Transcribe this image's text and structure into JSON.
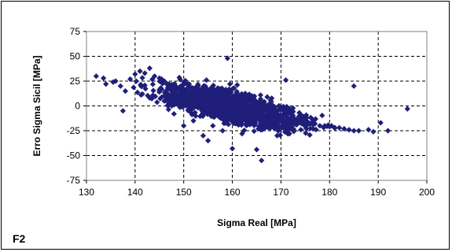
{
  "panel_label": "F2",
  "chart_data": {
    "type": "scatter",
    "xlabel": "Sigma Real [MPa]",
    "ylabel": "Erro Sigma Sicil [MPa]",
    "xlim": [
      130,
      200
    ],
    "ylim": [
      -75,
      75
    ],
    "x_ticks": [
      130,
      140,
      150,
      160,
      170,
      180,
      190,
      200
    ],
    "y_ticks": [
      75,
      50,
      25,
      0,
      -25,
      -50,
      -75
    ],
    "grid": "dashed, both axes",
    "legend": "none",
    "marker": "diamond",
    "marker_color": "#1F1F7A",
    "x": [
      132.0,
      133.5,
      134.0,
      135.5,
      136.0,
      137.0,
      138.0,
      139.0,
      140.0,
      141.0,
      141.5,
      142.0,
      143.0,
      144.0,
      145.0,
      146.0,
      147.0,
      148.0,
      149.0,
      150.0,
      151.0,
      152.0,
      153.0,
      154.0,
      155.0,
      156.0,
      157.0,
      158.0,
      159.0,
      160.0,
      161.0,
      162.0,
      163.0,
      164.0,
      165.0,
      166.0,
      167.0,
      168.0,
      169.0,
      170.0,
      171.0,
      172.0,
      173.0,
      174.0,
      175.0,
      176.0,
      177.0,
      178.0,
      179.0,
      180.0,
      181.0,
      182.0,
      183.0,
      184.0,
      185.0,
      186.0,
      188.0,
      189.0,
      190.5,
      192.0,
      196.0,
      159.0,
      137.5,
      185.0,
      171.0,
      143.0,
      150.0,
      155.0,
      160.0,
      165.0,
      154.0,
      158.0,
      162.0,
      166.0,
      146.0,
      148.0,
      152.0,
      156.0,
      161.0,
      163.0,
      157.0,
      153.0,
      159.5,
      164.0,
      168.0
    ],
    "y": [
      30,
      28,
      22,
      24,
      25,
      20,
      15,
      27,
      32,
      35,
      12,
      33,
      38,
      30,
      28,
      25,
      22,
      20,
      18,
      15,
      14,
      12,
      10,
      8,
      6,
      5,
      3,
      2,
      0,
      -2,
      -4,
      -5,
      -6,
      -8,
      -9,
      -10,
      -10,
      -12,
      -12,
      -13,
      -14,
      -15,
      -15,
      -16,
      -16,
      -18,
      -18,
      -20,
      -20,
      -21,
      -22,
      -22,
      -23,
      -24,
      -25,
      -25,
      -24,
      -26,
      -17,
      -25,
      -3,
      48,
      -5,
      20,
      26,
      8,
      -20,
      -35,
      -43,
      -44,
      -30,
      -25,
      -28,
      -55,
      5,
      -8,
      -15,
      -20,
      -18,
      -12,
      18,
      20,
      22,
      10,
      0
    ],
    "cluster": {
      "x_range": [
        132,
        196
      ],
      "y_at_x": [
        [
          132,
          28
        ],
        [
          140,
          20
        ],
        [
          150,
          10
        ],
        [
          160,
          -2
        ],
        [
          170,
          -12
        ],
        [
          180,
          -20
        ],
        [
          195,
          -24
        ]
      ],
      "spread": 14,
      "count": 1400
    }
  }
}
